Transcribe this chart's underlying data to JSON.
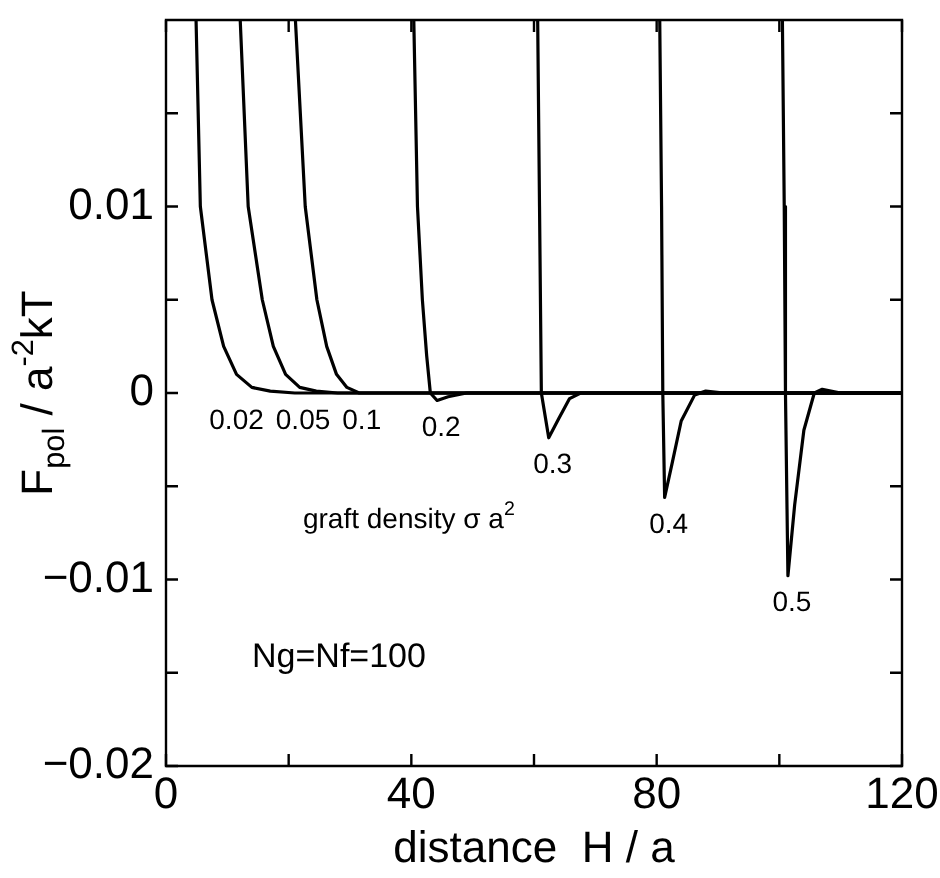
{
  "chart_data": {
    "type": "line",
    "xlabel": "distance  H / a",
    "ylabel": "F$_{pol}$ / a$^{-2}$kT",
    "xlim": [
      0,
      120
    ],
    "xticks": [
      0,
      {
        "value": 20,
        "label": null
      },
      40,
      {
        "value": 60,
        "label": null
      },
      80,
      {
        "value": 100,
        "label": null
      },
      120
    ],
    "ylim": [
      -0.02,
      0.02
    ],
    "yticks": [
      -0.02,
      {
        "value": -0.015,
        "label": null
      },
      -0.01,
      {
        "value": -0.005,
        "label": null
      },
      0,
      {
        "value": 0.005,
        "label": null
      },
      0.01,
      {
        "value": 0.015,
        "label": null
      }
    ],
    "grid": false,
    "legend": false,
    "marker": "none",
    "line_style": "solid",
    "series": [
      {
        "name": "0.02",
        "color": "#000000",
        "x": [
          4.9,
          5.6,
          7.5,
          9.4,
          11.5,
          14,
          17,
          21,
          120
        ],
        "values": [
          0.02,
          0.01,
          0.005,
          0.0025,
          0.001,
          0.0003,
          0.0001,
          0,
          0
        ]
      },
      {
        "name": "0.05",
        "color": "#000000",
        "x": [
          12.1,
          13.4,
          15.7,
          17.5,
          19.5,
          21.8,
          24.5,
          28,
          120
        ],
        "values": [
          0.02,
          0.01,
          0.005,
          0.0025,
          0.001,
          0.0003,
          0.0001,
          0,
          0
        ]
      },
      {
        "name": "0.1",
        "color": "#000000",
        "x": [
          21.1,
          22.7,
          24.6,
          26.2,
          27.8,
          29.5,
          31.5,
          120
        ],
        "values": [
          0.02,
          0.01,
          0.005,
          0.0025,
          0.001,
          0.0003,
          0,
          0
        ]
      },
      {
        "name": "0.2",
        "color": "#000000",
        "x": [
          40.4,
          41,
          41.8,
          42.5,
          43.1,
          44.2,
          46,
          49,
          120
        ],
        "values": [
          0.02,
          0.01,
          0.005,
          0.002,
          0,
          -0.0004,
          -0.0002,
          0,
          0
        ]
      },
      {
        "name": "0.3",
        "color": "#000000",
        "x": [
          60.6,
          60.9,
          61.2,
          62.4,
          64,
          65.8,
          67.6,
          120
        ],
        "values": [
          0.02,
          0.01,
          0,
          -0.0024,
          -0.0014,
          -0.0003,
          0,
          0
        ]
      },
      {
        "name": "0.4",
        "color": "#000000",
        "x": [
          80.5,
          80.8,
          81,
          81.3,
          82.5,
          84,
          86.2,
          88,
          91,
          120
        ],
        "values": [
          0.02,
          0.01,
          0,
          -0.0056,
          -0.0038,
          -0.0015,
          -0.0001,
          0.0001,
          0,
          0
        ]
      },
      {
        "name": "0.5",
        "color": "#000000",
        "x": [
          100.5,
          100.8,
          101,
          101.4,
          102.5,
          104,
          105.7,
          107,
          110,
          120
        ],
        "values": [
          0.02,
          0.01,
          0,
          -0.0098,
          -0.006,
          -0.002,
          0,
          0.0002,
          0,
          0
        ]
      }
    ],
    "annotations": [
      "graft density σ a$^{2}$",
      "Ng=Nf=100"
    ]
  }
}
